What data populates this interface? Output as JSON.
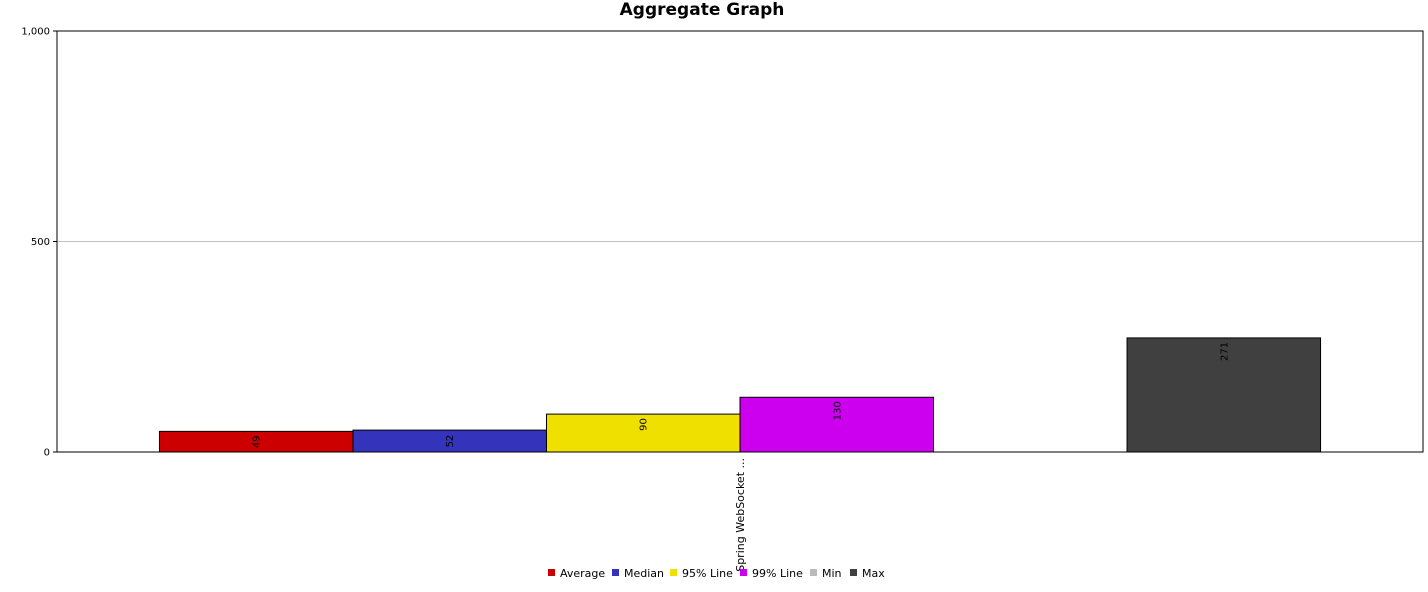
{
  "chart_data": {
    "type": "bar",
    "title": "Aggregate Graph",
    "xlabel": "",
    "ylabel": "",
    "ylim": [
      0,
      1000
    ],
    "yticks": [
      0,
      500,
      1000
    ],
    "ytick_labels": [
      "0",
      "500",
      "1,000"
    ],
    "grid": true,
    "legend_position": "bottom",
    "categories": [
      "Spring WebSocket ..."
    ],
    "series": [
      {
        "name": "Average",
        "color": "#cc0000",
        "values": [
          49
        ]
      },
      {
        "name": "Median",
        "color": "#3333bb",
        "values": [
          52
        ]
      },
      {
        "name": "95% Line",
        "color": "#f0e000",
        "values": [
          90
        ]
      },
      {
        "name": "99% Line",
        "color": "#cc00ee",
        "values": [
          130
        ]
      },
      {
        "name": "Min",
        "color": "#bbbbbb",
        "values": [
          0
        ]
      },
      {
        "name": "Max",
        "color": "#404040",
        "values": [
          271
        ]
      }
    ]
  }
}
